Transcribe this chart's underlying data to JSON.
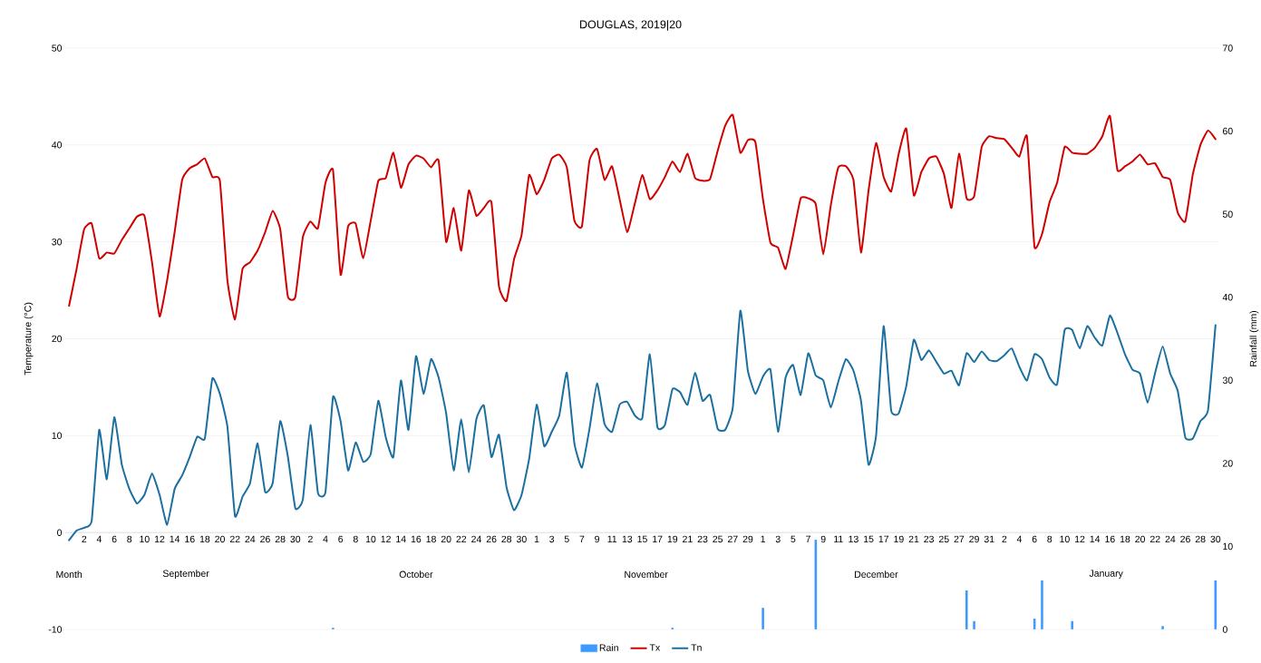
{
  "chart_data": {
    "type": "line",
    "title": "DOUGLAS, 2019|20",
    "ylabel": "Temperature (°C)",
    "y2label": "Rainfall (mm)",
    "categories": [
      null,
      null,
      "2",
      null,
      "4",
      null,
      "6",
      null,
      "8",
      null,
      "10",
      null,
      "12",
      null,
      "14",
      null,
      "16",
      null,
      "18",
      null,
      "20",
      null,
      "22",
      null,
      "24",
      null,
      "26",
      null,
      "28",
      null,
      "30",
      null,
      "2",
      null,
      "4",
      null,
      "6",
      null,
      "8",
      null,
      "10",
      null,
      "12",
      null,
      "14",
      null,
      "16",
      null,
      "18",
      null,
      "20",
      null,
      "22",
      null,
      "24",
      null,
      "26",
      null,
      "28",
      null,
      "30",
      null,
      "1",
      null,
      "3",
      null,
      "5",
      null,
      "7",
      null,
      "9",
      null,
      "11",
      null,
      "13",
      null,
      "15",
      null,
      "17",
      null,
      "19",
      null,
      "21",
      null,
      "23",
      null,
      "25",
      null,
      "27",
      null,
      "29",
      null,
      "1",
      null,
      "3",
      null,
      "5",
      null,
      "7",
      null,
      "9",
      null,
      "11",
      null,
      "13",
      null,
      "15",
      null,
      "17",
      null,
      "19",
      null,
      "21",
      null,
      "23",
      null,
      "25",
      null,
      "27",
      null,
      "29",
      null,
      "31",
      null,
      "2",
      null,
      "4",
      null,
      "6",
      null,
      "8",
      null,
      "10",
      null,
      "12",
      null,
      "14",
      null,
      "16",
      null,
      "18",
      null,
      "20",
      null,
      "22",
      null,
      "24",
      null,
      "26",
      null,
      "28",
      null,
      "30"
    ],
    "series": [
      {
        "name": "Rain",
        "type": "bar",
        "axis": "y2",
        "color": "#3d9bff",
        "values": [
          null,
          null,
          null,
          null,
          null,
          null,
          null,
          null,
          null,
          null,
          null,
          null,
          null,
          null,
          null,
          null,
          null,
          null,
          null,
          null,
          null,
          null,
          null,
          null,
          null,
          null,
          null,
          null,
          null,
          null,
          null,
          null,
          null,
          null,
          null,
          0.2,
          null,
          null,
          null,
          null,
          null,
          null,
          null,
          null,
          null,
          null,
          null,
          null,
          null,
          null,
          null,
          null,
          null,
          null,
          null,
          null,
          null,
          null,
          null,
          null,
          null,
          null,
          null,
          null,
          null,
          null,
          null,
          null,
          null,
          null,
          null,
          null,
          null,
          null,
          null,
          null,
          null,
          null,
          null,
          null,
          0.2,
          null,
          null,
          null,
          null,
          null,
          null,
          null,
          null,
          null,
          null,
          null,
          2.6,
          null,
          null,
          null,
          null,
          null,
          null,
          10.8,
          null,
          null,
          null,
          null,
          null,
          null,
          null,
          null,
          null,
          null,
          null,
          null,
          null,
          null,
          null,
          null,
          null,
          null,
          null,
          4.7,
          1.0,
          null,
          null,
          null,
          null,
          null,
          null,
          null,
          1.3,
          5.9,
          null,
          null,
          null,
          1.0,
          null,
          null,
          null,
          null,
          null,
          null,
          null,
          null,
          null,
          null,
          null,
          0.4,
          null,
          null,
          null,
          null,
          null,
          null,
          5.9
        ]
      },
      {
        "name": "Tx",
        "color": "#d00000",
        "values": [
          23.4,
          27.2,
          31.3,
          31.9,
          28.3,
          28.9,
          28.8,
          30.2,
          31.4,
          32.6,
          32.7,
          27.9,
          22.3,
          26.0,
          31.0,
          36.4,
          37.6,
          38.0,
          38.6,
          36.7,
          36.3,
          26.0,
          22.0,
          27.2,
          27.9,
          29.1,
          31.0,
          33.2,
          31.3,
          24.4,
          24.3,
          30.5,
          32.1,
          31.4,
          36.1,
          37.4,
          26.6,
          31.6,
          31.9,
          28.3,
          32.2,
          36.3,
          36.6,
          39.2,
          35.6,
          38.0,
          38.9,
          38.6,
          37.7,
          38.4,
          30.0,
          33.5,
          29.1,
          35.3,
          32.7,
          33.5,
          34.1,
          25.4,
          23.9,
          28.2,
          30.7,
          36.9,
          34.9,
          36.4,
          38.6,
          39.0,
          37.7,
          32.2,
          31.6,
          38.4,
          39.6,
          36.4,
          37.8,
          34.4,
          31.0,
          33.9,
          36.9,
          34.4,
          35.3,
          36.7,
          38.3,
          37.2,
          39.1,
          36.6,
          36.3,
          36.5,
          39.4,
          42.0,
          43.1,
          39.2,
          40.5,
          40.3,
          34.4,
          29.9,
          29.4,
          27.2,
          30.7,
          34.5,
          34.5,
          33.9,
          28.7,
          33.8,
          37.7,
          37.8,
          36.4,
          28.9,
          35.3,
          40.2,
          36.7,
          35.2,
          39.1,
          41.7,
          34.8,
          37.2,
          38.6,
          38.8,
          37.0,
          33.5,
          39.1,
          34.5,
          34.7,
          39.8,
          40.9,
          40.7,
          40.6,
          39.7,
          38.8,
          40.9,
          29.5,
          30.8,
          34.1,
          36.1,
          39.8,
          39.2,
          39.1,
          39.1,
          39.7,
          40.9,
          43.0,
          37.4,
          37.8,
          38.3,
          39.0,
          38.0,
          38.1,
          36.7,
          36.4,
          33.0,
          32.1,
          37.0,
          40.0,
          41.5,
          40.6
        ]
      },
      {
        "name": "Tn",
        "color": "#1b6f9f",
        "values": [
          -0.8,
          0.2,
          0.5,
          1.2,
          10.6,
          5.5,
          11.9,
          7.0,
          4.5,
          3.0,
          3.9,
          6.1,
          3.9,
          0.8,
          4.5,
          5.9,
          7.8,
          9.9,
          9.7,
          15.9,
          14.3,
          10.9,
          1.7,
          3.7,
          5.1,
          9.2,
          4.2,
          5.1,
          11.5,
          7.9,
          2.5,
          3.4,
          11.1,
          4.1,
          4.2,
          14.0,
          11.5,
          6.4,
          9.3,
          7.3,
          8.1,
          13.6,
          9.8,
          7.8,
          15.7,
          10.6,
          18.2,
          14.3,
          17.9,
          16.0,
          12.3,
          6.4,
          11.7,
          6.2,
          11.7,
          13.1,
          7.8,
          10.1,
          4.7,
          2.3,
          3.9,
          7.6,
          13.2,
          8.9,
          10.4,
          12.1,
          16.5,
          9.2,
          6.7,
          10.7,
          15.4,
          11.2,
          10.4,
          13.2,
          13.5,
          12.1,
          11.8,
          18.4,
          10.9,
          11.1,
          14.8,
          14.5,
          13.2,
          16.5,
          13.6,
          14.2,
          10.7,
          10.6,
          12.9,
          22.9,
          16.7,
          14.3,
          16.1,
          16.8,
          10.4,
          16.0,
          17.3,
          14.2,
          18.5,
          16.2,
          15.7,
          12.9,
          15.6,
          17.9,
          16.7,
          13.6,
          7.0,
          10.0,
          21.3,
          12.6,
          12.3,
          15.1,
          19.9,
          17.8,
          18.8,
          17.6,
          16.4,
          16.7,
          15.2,
          18.5,
          17.6,
          18.7,
          17.8,
          17.7,
          18.3,
          19.0,
          17.1,
          15.7,
          18.4,
          17.9,
          16.0,
          15.3,
          20.9,
          20.9,
          19.0,
          21.3,
          20.1,
          19.3,
          22.4,
          20.6,
          18.4,
          16.8,
          16.4,
          13.4,
          16.5,
          19.2,
          16.4,
          14.6,
          9.8,
          9.7,
          11.5,
          12.6,
          21.4
        ]
      }
    ],
    "ylim": [
      -10,
      50
    ],
    "yticks": [
      -10,
      0,
      10,
      20,
      30,
      40,
      50
    ],
    "y2lim": [
      0,
      70
    ],
    "y2ticks": [
      0,
      10,
      20,
      30,
      40,
      50,
      60,
      70
    ],
    "grid": "y",
    "legend": "bottom",
    "annotations": [
      "Month",
      "September",
      "October",
      "November",
      "December",
      "January"
    ]
  }
}
